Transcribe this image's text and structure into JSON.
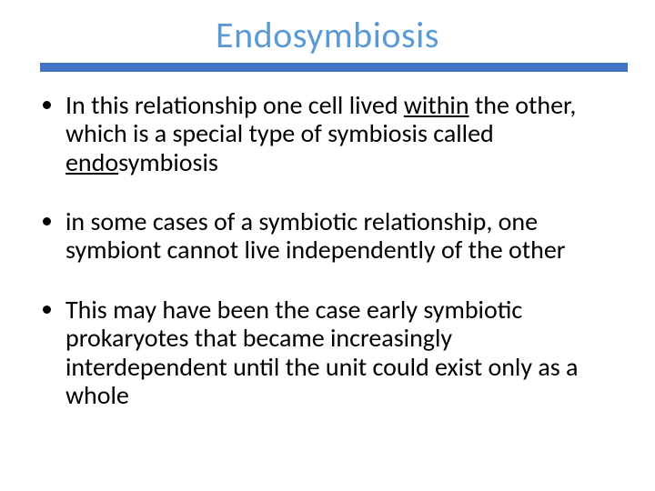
{
  "title": "Endosymbiosis",
  "title_color": "#5b9bd5",
  "underline_color": "#4472c4",
  "text_color": "#000000",
  "background_color": "#ffffff",
  "title_fontsize": 40,
  "body_fontsize": 28,
  "bullets": [
    {
      "pre": "In this relationship one cell lived ",
      "u1": "within",
      "mid": " the other, which is a special type of symbiosis called ",
      "u2": "endo",
      "post": "symbiosis"
    },
    {
      "pre": "in some cases of a symbiotic relationship, one symbiont cannot live independently of the other",
      "u1": "",
      "mid": "",
      "u2": "",
      "post": ""
    },
    {
      "pre": "This may have been the case early symbiotic prokaryotes that became increasingly interdependent until the unit could exist only as a whole",
      "u1": "",
      "mid": "",
      "u2": "",
      "post": ""
    }
  ]
}
